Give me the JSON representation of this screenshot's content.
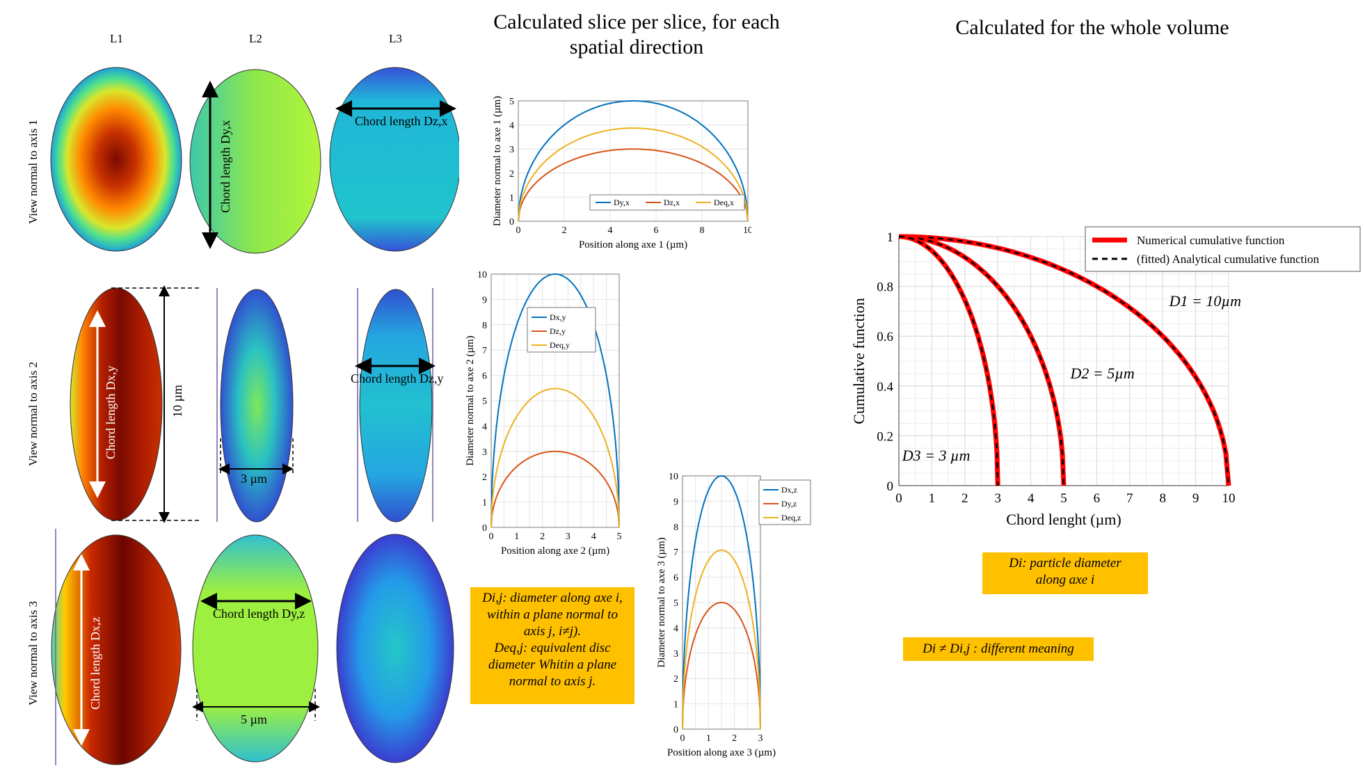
{
  "headings": {
    "slice": [
      "Calculated slice per slice, for each",
      "spatial direction"
    ],
    "volume": "Calculated for the whole volume"
  },
  "columns": [
    "L1",
    "L2",
    "L3"
  ],
  "rows": [
    "View normal to axis 1",
    "View normal to axis 2",
    "View normal to axis 3"
  ],
  "ellipse_annotations": {
    "chord_dyx": "Chord length Dy,x",
    "chord_dzx": "Chord length Dz,x",
    "chord_dxy": "Chord length Dx,y",
    "chord_dzy": "Chord length Dz,y",
    "chord_dxz": "Chord length Dx,z",
    "chord_dyz": "Chord length Dy,z",
    "dim_10": "10 µm",
    "dim_3": "3 µm",
    "dim_5": "5 µm"
  },
  "colors": {
    "blue": "#0072bd",
    "orange": "#d95319",
    "yellow": "#edb120",
    "red": "#ff0000",
    "note_bg": "#ffc000"
  },
  "chart_data": [
    {
      "type": "line",
      "xlabel": "Position along axe 1 (µm)",
      "ylabel": "Diameter normal to axe 1 (µm)",
      "xlim": [
        0,
        10
      ],
      "ylim": [
        0,
        5
      ],
      "xticks": [
        0,
        2,
        4,
        6,
        8,
        10
      ],
      "yticks": [
        0,
        1,
        2,
        3,
        4,
        5
      ],
      "grid": true,
      "legend": "bottom-right, horizontal",
      "series": [
        {
          "name": "Dy,x",
          "peak": 5,
          "color": "#0072bd"
        },
        {
          "name": "Dz,x",
          "peak": 3,
          "color": "#d95319"
        },
        {
          "name": "Deq,x",
          "peak": 3.87,
          "color": "#edb120"
        }
      ]
    },
    {
      "type": "line",
      "xlabel": "Position along axe 2 (µm)",
      "ylabel": "Diameter normal to axe 2 (µm)",
      "xlim": [
        0,
        5
      ],
      "ylim": [
        0,
        10
      ],
      "xticks": [
        0,
        0.5,
        1,
        1.5,
        2,
        2.5,
        3,
        3.5,
        4,
        4.5,
        5
      ],
      "xtick_labels": [
        "0",
        "",
        "1",
        "",
        "2",
        "",
        "3",
        "",
        "4",
        "",
        "5"
      ],
      "yticks": [
        0,
        1,
        2,
        3,
        4,
        5,
        6,
        7,
        8,
        9,
        10
      ],
      "grid": true,
      "legend": "top-center",
      "series": [
        {
          "name": "Dx,y",
          "peak": 10,
          "color": "#0072bd"
        },
        {
          "name": "Dz,y",
          "peak": 3,
          "color": "#d95319"
        },
        {
          "name": "Deq,y",
          "peak": 5.48,
          "color": "#edb120"
        }
      ]
    },
    {
      "type": "line",
      "xlabel": "Position along axe 3 (µm)",
      "ylabel": "Diameter normal to axe 3 (µm)",
      "xlim": [
        0,
        3
      ],
      "ylim": [
        0,
        10
      ],
      "xticks": [
        0,
        0.5,
        1,
        1.5,
        2,
        2.5,
        3
      ],
      "xtick_labels": [
        "0",
        "",
        "1",
        "",
        "2",
        "",
        "3"
      ],
      "yticks": [
        0,
        1,
        2,
        3,
        4,
        5,
        6,
        7,
        8,
        9,
        10
      ],
      "grid": true,
      "legend": "top-right",
      "series": [
        {
          "name": "Dx,z",
          "peak": 10,
          "color": "#0072bd"
        },
        {
          "name": "Dy,z",
          "peak": 5,
          "color": "#d95319"
        },
        {
          "name": "Deq,z",
          "peak": 7.07,
          "color": "#edb120"
        }
      ]
    },
    {
      "type": "line",
      "xlabel": "Chord lenght (µm)",
      "ylabel": "Cumulative function",
      "xlim": [
        0,
        10
      ],
      "ylim": [
        0,
        1
      ],
      "xticks": [
        0,
        1,
        2,
        3,
        4,
        5,
        6,
        7,
        8,
        9,
        10
      ],
      "yticks": [
        0,
        0.2,
        0.4,
        0.6,
        0.8,
        1
      ],
      "ytick_labels": [
        "0",
        "0.2",
        "0.4",
        "0.6",
        "0.8",
        "1"
      ],
      "grid": true,
      "legend": "top-right",
      "legend_entries": [
        "Numerical cumulative function",
        "(fitted) Analytical cumulative function"
      ],
      "curves": [
        {
          "label": "D1 = 10µm",
          "diameter": 10
        },
        {
          "label": "D2 = 5µm",
          "diameter": 5
        },
        {
          "label": "D3 = 3 µm",
          "diameter": 3
        }
      ]
    }
  ],
  "notes": {
    "dij_lines": [
      "Di,j: diameter along axe i,",
      "within a plane normal to",
      "axis j, i≠j).",
      "Deq,j: equivalent disc",
      "diameter Whitin a plane",
      "normal to axis j."
    ],
    "di_lines": [
      "Di: particle diameter",
      "along axe i"
    ],
    "meaning": "Di ≠ Di,j : different meaning"
  }
}
